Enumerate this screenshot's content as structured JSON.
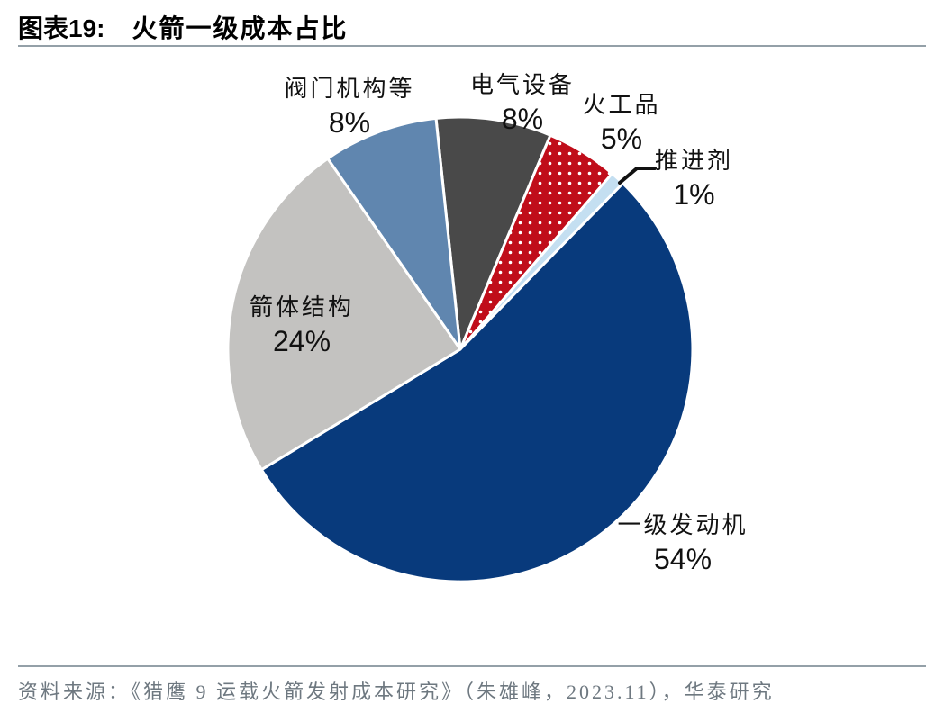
{
  "header": {
    "chart_number": "图表19:",
    "title": "火箭一级成本占比"
  },
  "chart_data": {
    "type": "pie",
    "title": "火箭一级成本占比",
    "start_angle_deg": -6,
    "direction": "clockwise-from-top",
    "slice_border_color": "#FFFFFF",
    "slices": [
      {
        "label": "电气设备",
        "value": 8,
        "pct_label": "8%",
        "color": "#494949",
        "pattern": "solid"
      },
      {
        "label": "火工品",
        "value": 5,
        "pct_label": "5%",
        "color": "#C00D1A",
        "pattern": "white-dots"
      },
      {
        "label": "推进剂",
        "value": 1,
        "pct_label": "1%",
        "color": "#C4DFF1",
        "pattern": "solid"
      },
      {
        "label": "一级发动机",
        "value": 54,
        "pct_label": "54%",
        "color": "#083A7C",
        "pattern": "solid"
      },
      {
        "label": "箭体结构",
        "value": 24,
        "pct_label": "24%",
        "color": "#C3C2C0",
        "pattern": "solid"
      },
      {
        "label": "阀门机构等",
        "value": 8,
        "pct_label": "8%",
        "color": "#6086AF",
        "pattern": "solid"
      }
    ]
  },
  "footer": {
    "source": "资料来源：《猎鹰 9 运载火箭发射成本研究》（朱雄峰，2023.11），华泰研究"
  }
}
